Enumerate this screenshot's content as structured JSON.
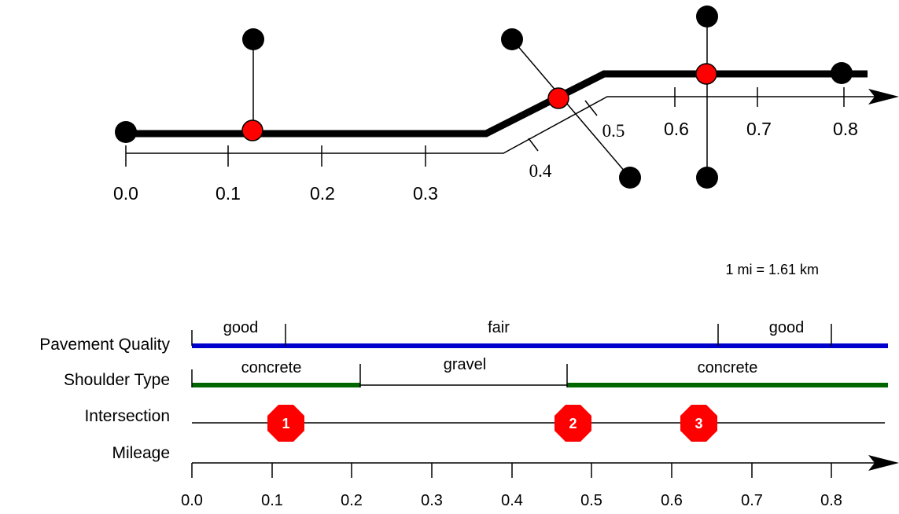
{
  "map": {
    "tick_labels_sans": [
      "0.0",
      "0.1",
      "0.2",
      "0.3",
      "0.6",
      "0.7",
      "0.8"
    ],
    "tick_labels_serif": [
      "0.4",
      "0.5"
    ]
  },
  "conversion_note": "1 mi = 1.61 km",
  "strip": {
    "row_labels": {
      "pavement": "Pavement Quality",
      "shoulder": "Shoulder Type",
      "intersection": "Intersection",
      "mileage": "Mileage"
    },
    "pavement_segments": [
      {
        "label": "good",
        "from": 0.0,
        "to": 0.12
      },
      {
        "label": "fair",
        "from": 0.12,
        "to": 0.66
      },
      {
        "label": "good",
        "from": 0.66,
        "to": 0.8
      }
    ],
    "shoulder_segments": [
      {
        "label": "concrete",
        "from": 0.0,
        "to": 0.21
      },
      {
        "label": "gravel",
        "from": 0.21,
        "to": 0.47
      },
      {
        "label": "concrete",
        "from": 0.47,
        "to": 0.87
      }
    ],
    "intersections": [
      {
        "number": "1",
        "mile": 0.12
      },
      {
        "number": "2",
        "mile": 0.48
      },
      {
        "number": "3",
        "mile": 0.635
      }
    ],
    "mileage_ticks": [
      "0.0",
      "0.1",
      "0.2",
      "0.3",
      "0.4",
      "0.5",
      "0.6",
      "0.7",
      "0.8"
    ]
  },
  "colors": {
    "pavement": "#0000cc",
    "shoulder_concrete": "#006600",
    "intersection_node": "#ff0000",
    "stop_sign": "#ff0000",
    "road": "#000000"
  }
}
